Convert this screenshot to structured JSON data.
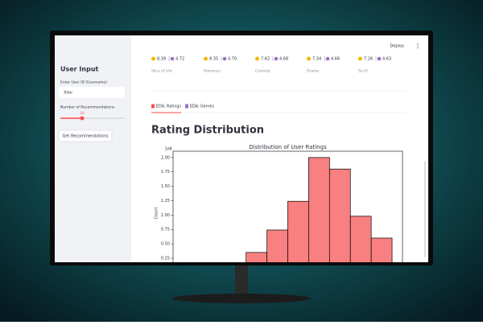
{
  "sidebar": {
    "title": "User Input",
    "user_id_label": "Enter User ID (Username)",
    "user_id_value": "Xiev",
    "slider_label": "Number of Recommendations",
    "slider_value": 10,
    "button": "Get Recommendations"
  },
  "header": {
    "deploy": "Deploy"
  },
  "genre_cards": [
    {
      "rating": "8.39",
      "score": "4.72",
      "genre": "Slice of Life"
    },
    {
      "rating": "8.35",
      "score": "4.70",
      "genre": "Romance"
    },
    {
      "rating": "7.62",
      "score": "4.68",
      "genre": "Comedy"
    },
    {
      "rating": "7.34",
      "score": "4.66",
      "genre": "Drama"
    },
    {
      "rating": "7.26",
      "score": "4.63",
      "genre": "Sci-Fi"
    }
  ],
  "tabs": [
    "EDA: Ratings",
    "EDA: Genres"
  ],
  "section_title": "Rating Distribution",
  "chart_data": {
    "type": "histogram",
    "title": "Distribution of User Ratings",
    "ylabel": "Count",
    "y_offset_label": "1e6",
    "bins": [
      3.5,
      4.5,
      5.5,
      6.5,
      7.5,
      8.5,
      9.5,
      10.5
    ],
    "values": [
      0.35,
      0.74,
      1.24,
      2.0,
      1.8,
      0.98,
      0.6
    ],
    "color": "#f88080",
    "xlim": [
      0,
      11
    ],
    "ylim": [
      0,
      2.11
    ],
    "yticks": [
      0.25,
      {
        "value": 0.5,
        "label": "0.50"
      },
      0.75,
      {
        "value": 1,
        "label": "1.00"
      },
      1.25,
      {
        "value": 1.5,
        "label": "1.50"
      },
      1.75,
      {
        "value": 2,
        "label": "2.00"
      }
    ]
  }
}
